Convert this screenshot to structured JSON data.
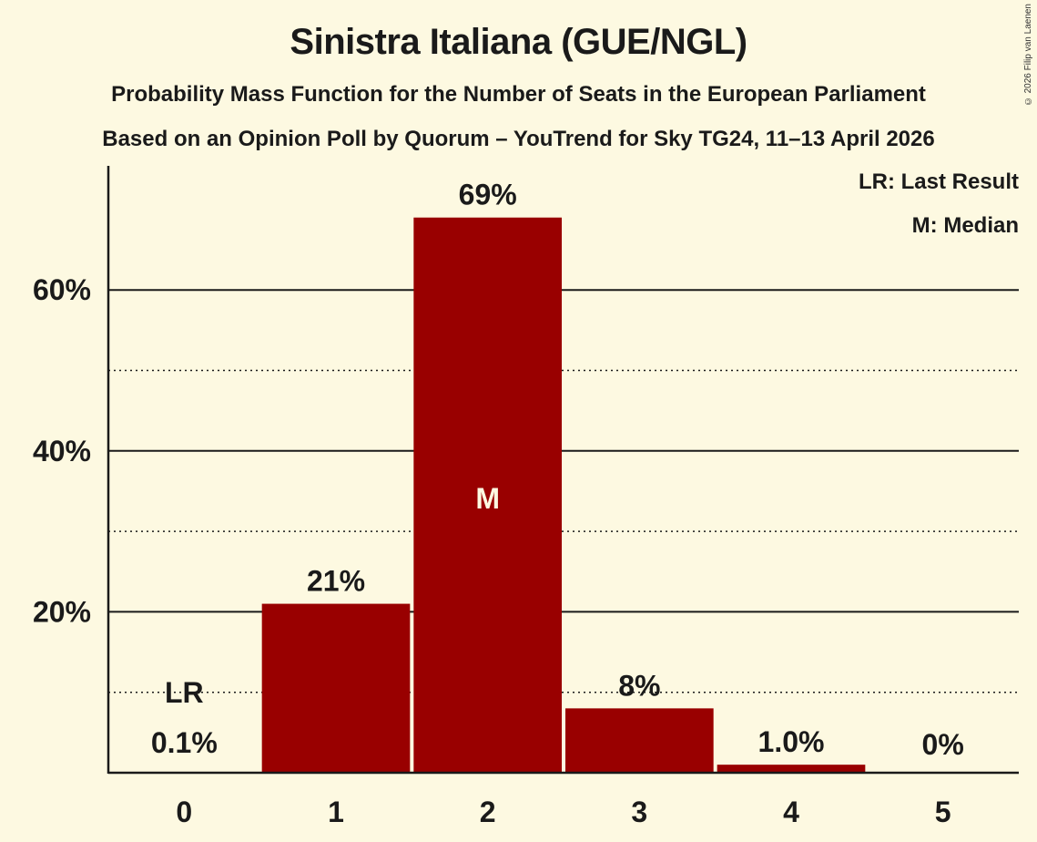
{
  "header": {
    "title": "Sinistra Italiana (GUE/NGL)",
    "subtitle1": "Probability Mass Function for the Number of Seats in the European Parliament",
    "subtitle2": "Based on an Opinion Poll by Quorum – YouTrend for Sky TG24, 11–13 April 2026",
    "copyright": "© 2026 Filip van Laenen"
  },
  "legend": {
    "lr": "LR: Last Result",
    "m": "M: Median"
  },
  "colors": {
    "bar": "#990000",
    "background": "#fdf9e1",
    "text": "#1a1a1a"
  },
  "chart_data": {
    "type": "bar",
    "title": "Sinistra Italiana (GUE/NGL)",
    "subtitle": "Probability Mass Function for the Number of Seats in the European Parliament",
    "xlabel": "",
    "ylabel": "",
    "categories": [
      "0",
      "1",
      "2",
      "3",
      "4",
      "5"
    ],
    "values": [
      0.1,
      21,
      69,
      8,
      1.0,
      0
    ],
    "value_labels": [
      "0.1%",
      "21%",
      "69%",
      "8%",
      "1.0%",
      "0%"
    ],
    "y_ticks": [
      "20%",
      "40%",
      "60%"
    ],
    "ylim": [
      0,
      75
    ],
    "grid": {
      "major": [
        20,
        40,
        60
      ],
      "minor_dotted": [
        10,
        30,
        50
      ]
    },
    "annotations": {
      "last_result": {
        "category": "0",
        "label": "LR"
      },
      "median": {
        "category": "2",
        "label": "M"
      }
    },
    "legend_position": "top-right"
  }
}
